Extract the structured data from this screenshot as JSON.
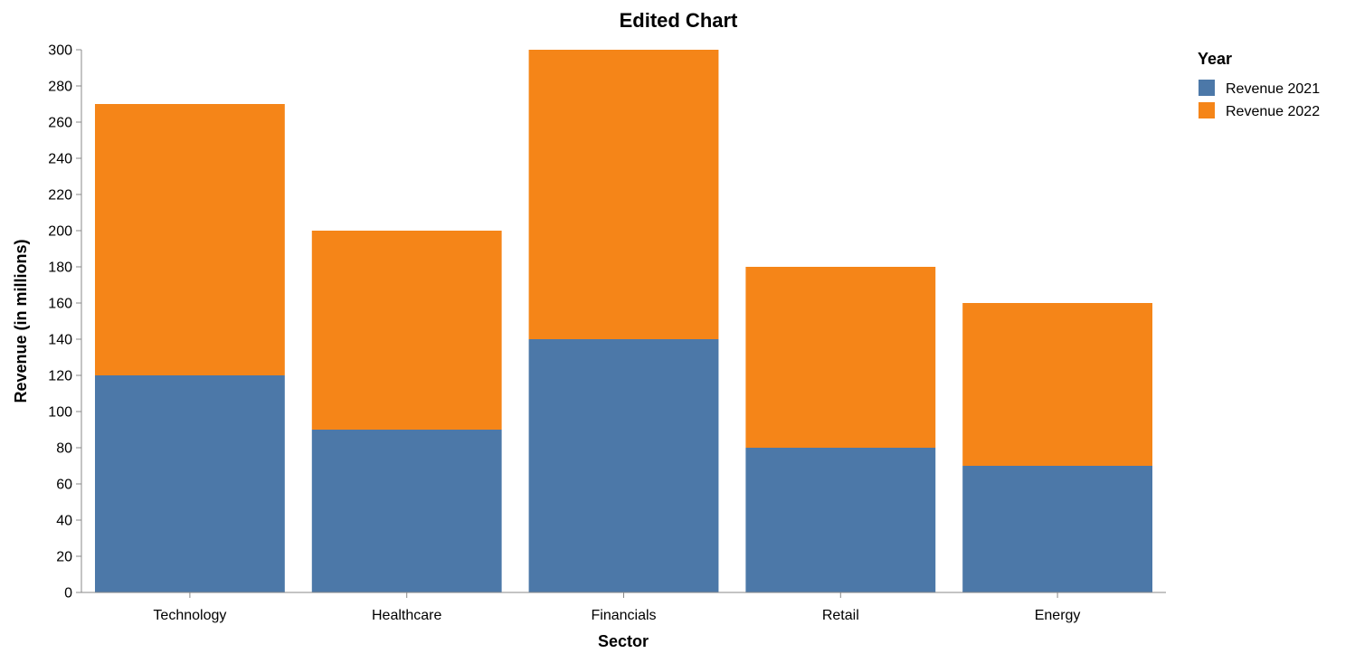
{
  "chart_data": {
    "type": "bar",
    "stacked": true,
    "title": "Edited Chart",
    "xlabel": "Sector",
    "ylabel": "Revenue (in millions)",
    "ylim": [
      0,
      300
    ],
    "yticks": [
      0,
      20,
      40,
      60,
      80,
      100,
      120,
      140,
      160,
      180,
      200,
      220,
      240,
      260,
      280,
      300
    ],
    "grid": false,
    "legend": {
      "title": "Year",
      "placement": "top-right"
    },
    "categories": [
      "Technology",
      "Healthcare",
      "Financials",
      "Retail",
      "Energy"
    ],
    "series": [
      {
        "name": "Revenue 2021",
        "color": "#4c78a8",
        "values": [
          120,
          90,
          140,
          80,
          70
        ]
      },
      {
        "name": "Revenue 2022",
        "color": "#f58518",
        "values": [
          150,
          110,
          160,
          100,
          90
        ]
      }
    ]
  }
}
